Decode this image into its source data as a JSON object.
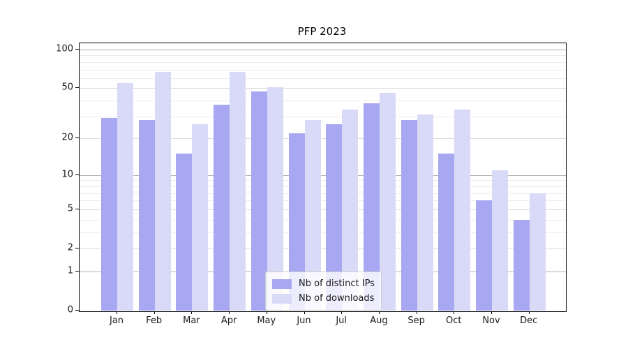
{
  "chart_data": {
    "type": "bar",
    "title": "PFP 2023",
    "categories": [
      "Jan",
      "Feb",
      "Mar",
      "Apr",
      "May",
      "Jun",
      "Jul",
      "Aug",
      "Sep",
      "Oct",
      "Nov",
      "Dec"
    ],
    "category_year": "2023",
    "series": [
      {
        "name": "Nb of distinct IPs",
        "color": "#a7a7f2",
        "values": [
          29,
          28,
          15,
          37,
          47,
          22,
          26,
          38,
          28,
          15,
          6,
          4
        ]
      },
      {
        "name": "Nb of downloads",
        "color": "#d9d9f8",
        "values": [
          55,
          67,
          26,
          67,
          51,
          28,
          34,
          46,
          31,
          34,
          11,
          7
        ]
      }
    ],
    "xlabel": "",
    "ylabel": "",
    "y_axis": {
      "scale": "log1p",
      "tick_labels": [
        0,
        1,
        2,
        5,
        10,
        20,
        50,
        100
      ],
      "major_gridlines": [
        1,
        10,
        100
      ],
      "labeled_minor_gridlines": [
        2,
        5,
        20,
        50
      ],
      "minor_gridlines": [
        3,
        4,
        6,
        7,
        8,
        9,
        30,
        40,
        60,
        70,
        80,
        90
      ],
      "ylim": [
        0,
        112
      ]
    },
    "grid": true,
    "legend_position": "bottom-center",
    "colors": {
      "major_grid": "#b3b3b3",
      "labeled_minor_grid": "#dcdcdc",
      "minor_grid": "#ececec",
      "spine": "#000000",
      "text": "#1a1a1a"
    }
  }
}
